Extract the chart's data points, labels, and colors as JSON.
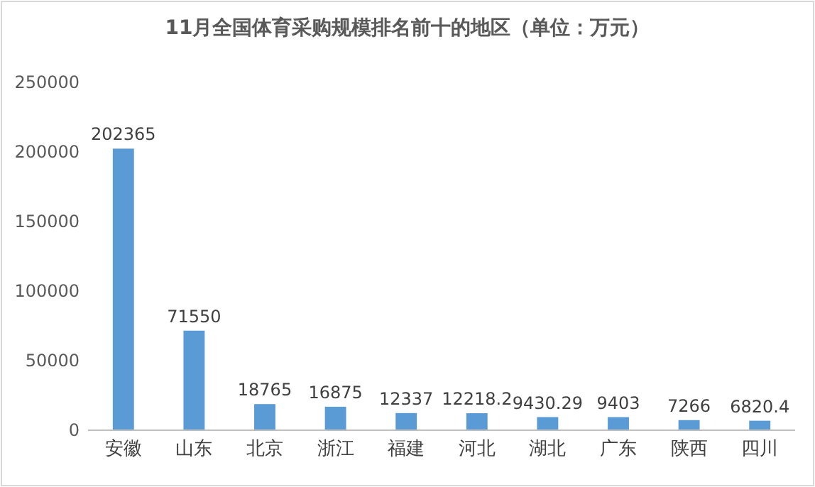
{
  "chart_data": {
    "type": "bar",
    "title": "11月全国体育采购规模排名前十的地区（单位：万元）",
    "categories": [
      "安徽",
      "山东",
      "北京",
      "浙江",
      "福建",
      "河北",
      "湖北",
      "广东",
      "陕西",
      "四川"
    ],
    "values": [
      202365,
      71550,
      18765,
      16875,
      12337,
      12218.2,
      9430.29,
      9403,
      7266,
      6820.4
    ],
    "color": "#5b9bd5",
    "ylim": [
      0,
      250000
    ],
    "yticks": [
      0,
      50000,
      100000,
      150000,
      200000,
      250000
    ],
    "grid": false,
    "data_labels": true
  }
}
